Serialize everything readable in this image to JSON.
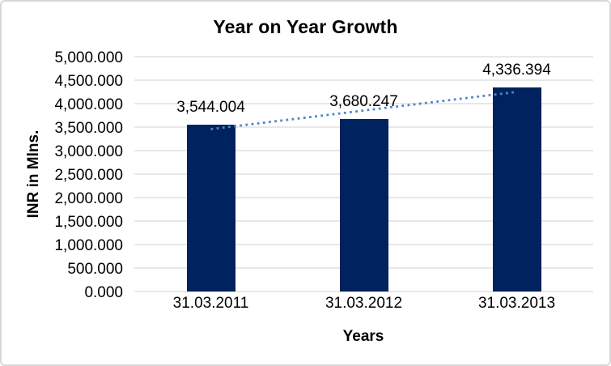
{
  "chart_data": {
    "type": "bar",
    "title": "Year on Year Growth",
    "xlabel": "Years",
    "ylabel": "INR in Mlns.",
    "categories": [
      "31.03.2011",
      "31.03.2012",
      "31.03.2013"
    ],
    "values": [
      3544.004,
      3680.247,
      4336.394
    ],
    "data_labels": [
      "3,544.004",
      "3,680.247",
      "4,336.394"
    ],
    "ylim": [
      0,
      5000
    ],
    "ytick_step": 500,
    "ytick_labels": [
      "0.000",
      "500.000",
      "1,000.000",
      "1,500.000",
      "2,000.000",
      "2,500.000",
      "3,000.000",
      "3,500.000",
      "4,000.000",
      "4,500.000",
      "5,000.000"
    ],
    "grid": true,
    "legend_position": "none",
    "bar_color": "#00225e",
    "gridline_color": "#d9d9d9",
    "text_color": "#000000",
    "trendline": {
      "type": "linear",
      "style": "dotted",
      "color": "#4e87c8"
    }
  }
}
